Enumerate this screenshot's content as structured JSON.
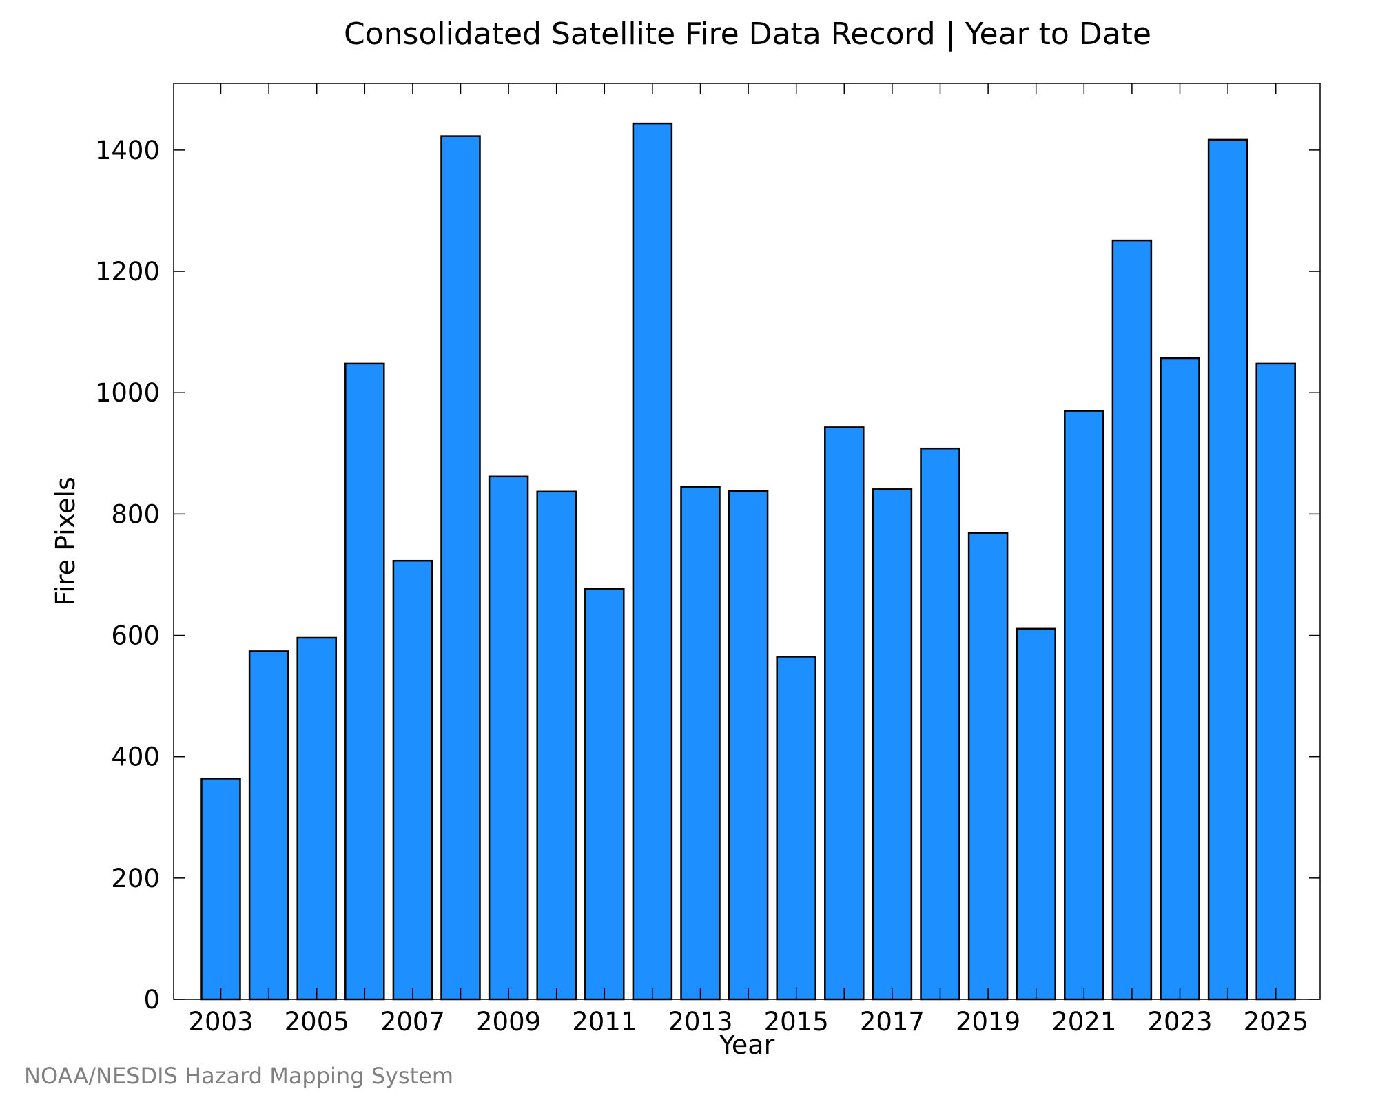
{
  "chart_data": {
    "type": "bar",
    "title": "Consolidated Satellite Fire Data Record | Year to Date",
    "xlabel": "Year",
    "ylabel": "Fire Pixels",
    "categories": [
      "2003",
      "2004",
      "2005",
      "2006",
      "2007",
      "2008",
      "2009",
      "2010",
      "2011",
      "2012",
      "2013",
      "2014",
      "2015",
      "2016",
      "2017",
      "2018",
      "2019",
      "2020",
      "2021",
      "2022",
      "2023",
      "2024",
      "2025"
    ],
    "values": [
      364,
      574,
      596,
      1048,
      723,
      1423,
      862,
      837,
      677,
      1444,
      845,
      838,
      565,
      943,
      841,
      908,
      769,
      611,
      970,
      1251,
      1057,
      1417,
      1048
    ],
    "ylim": [
      0,
      1510
    ],
    "yticks": [
      0,
      200,
      400,
      600,
      800,
      1000,
      1200,
      1400
    ],
    "xtick_labels": [
      "2003",
      "2005",
      "2007",
      "2009",
      "2011",
      "2013",
      "2015",
      "2017",
      "2019",
      "2021",
      "2023",
      "2025"
    ],
    "grid": false,
    "bar_color": "#1E8FFF",
    "edge_color": "#000000"
  },
  "footer": {
    "credit": "NOAA/NESDIS Hazard Mapping System"
  }
}
